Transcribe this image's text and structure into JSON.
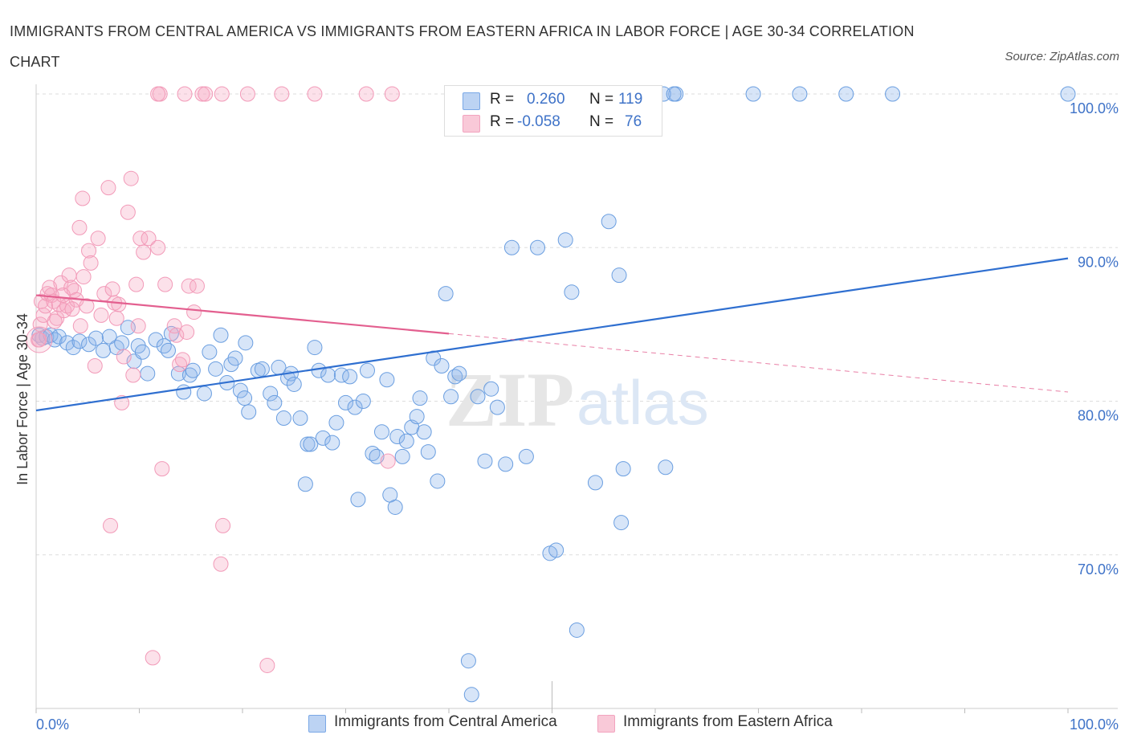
{
  "title": "IMMIGRANTS FROM CENTRAL AMERICA VS IMMIGRANTS FROM EASTERN AFRICA IN LABOR FORCE | AGE 30-34 CORRELATION CHART",
  "source": "Source: ZipAtlas.com",
  "watermark": {
    "zip": "ZIP",
    "atlas": "atlas"
  },
  "legend_stats": [
    {
      "r_label": "R =",
      "r_value": "0.260",
      "n_label": "N =",
      "n_value": "119",
      "color": "#7aa8e6"
    },
    {
      "r_label": "R =",
      "r_value": "-0.058",
      "n_label": "N =",
      "n_value": "76",
      "color": "#f2a3bf"
    }
  ],
  "chart_data": {
    "type": "scatter",
    "title": "IMMIGRANTS FROM CENTRAL AMERICA VS IMMIGRANTS FROM EASTERN AFRICA IN LABOR FORCE | AGE 30-34 CORRELATION CHART",
    "xlabel": "",
    "ylabel": "In Labor Force | Age 30-34",
    "xlim": [
      0,
      100
    ],
    "ylim": [
      60,
      100
    ],
    "x_tick_labels": [
      "0.0%",
      "100.0%"
    ],
    "y_ticks": [
      70,
      80,
      90,
      100
    ],
    "y_tick_labels": [
      "70.0%",
      "80.0%",
      "90.0%",
      "100.0%"
    ],
    "grid": true,
    "legend_position": "bottom",
    "series": [
      {
        "name": "Immigrants from Central America",
        "color": "#6a9ee0",
        "line_color": "#2f6fd0",
        "trend": {
          "x": [
            0,
            100
          ],
          "y": [
            79.4,
            89.3
          ]
        },
        "points": [
          [
            0.3,
            84.3
          ],
          [
            0.6,
            84.1
          ],
          [
            1.0,
            84.2
          ],
          [
            1.4,
            84.3
          ],
          [
            1.8,
            84.0
          ],
          [
            2.2,
            84.2
          ],
          [
            3.0,
            83.8
          ],
          [
            3.6,
            83.5
          ],
          [
            4.2,
            83.9
          ],
          [
            5.1,
            83.7
          ],
          [
            5.8,
            84.1
          ],
          [
            6.5,
            83.3
          ],
          [
            7.1,
            84.2
          ],
          [
            7.8,
            83.5
          ],
          [
            8.3,
            83.8
          ],
          [
            8.9,
            84.8
          ],
          [
            9.5,
            82.6
          ],
          [
            9.9,
            83.6
          ],
          [
            10.3,
            83.2
          ],
          [
            10.8,
            81.8
          ],
          [
            11.6,
            84.0
          ],
          [
            12.4,
            83.6
          ],
          [
            12.8,
            83.3
          ],
          [
            13.1,
            84.4
          ],
          [
            13.8,
            81.8
          ],
          [
            14.3,
            80.6
          ],
          [
            14.9,
            81.7
          ],
          [
            15.2,
            82.0
          ],
          [
            16.3,
            80.5
          ],
          [
            16.8,
            83.2
          ],
          [
            17.4,
            82.1
          ],
          [
            17.9,
            84.3
          ],
          [
            18.5,
            81.2
          ],
          [
            18.9,
            82.4
          ],
          [
            19.3,
            82.8
          ],
          [
            19.8,
            80.7
          ],
          [
            20.2,
            80.2
          ],
          [
            20.6,
            79.3
          ],
          [
            20.3,
            83.8
          ],
          [
            21.5,
            82.0
          ],
          [
            21.9,
            82.1
          ],
          [
            22.7,
            80.5
          ],
          [
            23.1,
            79.9
          ],
          [
            23.5,
            82.2
          ],
          [
            24.0,
            78.9
          ],
          [
            24.4,
            81.5
          ],
          [
            24.7,
            81.8
          ],
          [
            25.0,
            81.1
          ],
          [
            25.6,
            78.9
          ],
          [
            26.1,
            74.6
          ],
          [
            26.3,
            77.2
          ],
          [
            26.6,
            77.2
          ],
          [
            27.0,
            83.5
          ],
          [
            27.4,
            82.0
          ],
          [
            27.8,
            77.6
          ],
          [
            28.3,
            81.7
          ],
          [
            28.7,
            77.3
          ],
          [
            29.1,
            78.6
          ],
          [
            29.6,
            81.7
          ],
          [
            30.0,
            79.9
          ],
          [
            30.4,
            81.6
          ],
          [
            30.9,
            79.6
          ],
          [
            31.2,
            73.6
          ],
          [
            31.7,
            80.0
          ],
          [
            32.1,
            82.0
          ],
          [
            32.6,
            76.6
          ],
          [
            33.0,
            76.4
          ],
          [
            33.5,
            78.0
          ],
          [
            34.0,
            81.4
          ],
          [
            34.3,
            73.9
          ],
          [
            34.8,
            73.1
          ],
          [
            35.0,
            77.7
          ],
          [
            35.5,
            76.4
          ],
          [
            35.9,
            77.4
          ],
          [
            36.4,
            78.3
          ],
          [
            36.9,
            79.0
          ],
          [
            37.2,
            80.2
          ],
          [
            37.6,
            78.0
          ],
          [
            38.0,
            76.7
          ],
          [
            38.5,
            82.8
          ],
          [
            38.9,
            74.8
          ],
          [
            39.3,
            82.3
          ],
          [
            39.7,
            87.0
          ],
          [
            40.2,
            80.3
          ],
          [
            40.6,
            81.6
          ],
          [
            41.0,
            81.8
          ],
          [
            41.9,
            63.1
          ],
          [
            42.2,
            60.9
          ],
          [
            42.8,
            80.3
          ],
          [
            43.5,
            76.1
          ],
          [
            44.1,
            80.8
          ],
          [
            44.7,
            79.6
          ],
          [
            45.5,
            75.9
          ],
          [
            46.1,
            90.0
          ],
          [
            47.5,
            76.4
          ],
          [
            48.6,
            90.0
          ],
          [
            49.8,
            70.1
          ],
          [
            50.4,
            70.3
          ],
          [
            51.3,
            90.5
          ],
          [
            51.9,
            87.1
          ],
          [
            52.4,
            65.1
          ],
          [
            54.2,
            74.7
          ],
          [
            55.5,
            91.7
          ],
          [
            56.7,
            72.1
          ],
          [
            56.9,
            75.6
          ],
          [
            56.5,
            88.2
          ],
          [
            61.0,
            75.7
          ],
          [
            58.0,
            100
          ],
          [
            62.0,
            100
          ],
          [
            59.0,
            100
          ],
          [
            69.5,
            100
          ],
          [
            74.0,
            100
          ],
          [
            78.5,
            100
          ],
          [
            83.0,
            100
          ],
          [
            58.5,
            100
          ],
          [
            60.8,
            100
          ],
          [
            61.8,
            100
          ],
          [
            100,
            100
          ]
        ]
      },
      {
        "name": "Immigrants from Eastern Africa",
        "color": "#f29ab8",
        "line_color": "#e35f8f",
        "trend": {
          "x": [
            0,
            40
          ],
          "y": [
            86.9,
            84.4
          ]
        },
        "trend_dashed": {
          "x": [
            40,
            100
          ],
          "y": [
            84.4,
            80.6
          ]
        },
        "points": [
          [
            0.2,
            84.0
          ],
          [
            0.4,
            85.0
          ],
          [
            0.5,
            86.5
          ],
          [
            0.7,
            85.6
          ],
          [
            0.9,
            86.2
          ],
          [
            1.1,
            87.0
          ],
          [
            1.3,
            87.4
          ],
          [
            1.5,
            86.9
          ],
          [
            1.7,
            86.5
          ],
          [
            2.0,
            85.4
          ],
          [
            2.2,
            86.3
          ],
          [
            2.4,
            87.7
          ],
          [
            2.7,
            85.9
          ],
          [
            3.0,
            86.2
          ],
          [
            3.2,
            88.2
          ],
          [
            3.4,
            87.4
          ],
          [
            3.7,
            87.2
          ],
          [
            3.9,
            86.6
          ],
          [
            4.3,
            84.9
          ],
          [
            4.6,
            88.1
          ],
          [
            4.9,
            86.2
          ],
          [
            5.1,
            89.8
          ],
          [
            5.3,
            89.0
          ],
          [
            5.7,
            82.3
          ],
          [
            6.0,
            90.6
          ],
          [
            6.3,
            85.6
          ],
          [
            6.6,
            87.0
          ],
          [
            7.0,
            93.9
          ],
          [
            7.2,
            71.9
          ],
          [
            7.4,
            87.3
          ],
          [
            7.6,
            86.4
          ],
          [
            7.8,
            85.4
          ],
          [
            8.0,
            86.3
          ],
          [
            8.3,
            79.9
          ],
          [
            8.5,
            82.9
          ],
          [
            8.9,
            92.3
          ],
          [
            9.2,
            94.5
          ],
          [
            9.4,
            81.7
          ],
          [
            9.7,
            87.6
          ],
          [
            9.9,
            84.9
          ],
          [
            10.1,
            90.6
          ],
          [
            10.4,
            89.7
          ],
          [
            10.9,
            90.6
          ],
          [
            11.3,
            63.3
          ],
          [
            11.8,
            90.0
          ],
          [
            12.2,
            75.6
          ],
          [
            12.5,
            87.6
          ],
          [
            13.4,
            84.9
          ],
          [
            13.6,
            84.3
          ],
          [
            13.9,
            82.4
          ],
          [
            14.2,
            82.7
          ],
          [
            14.6,
            84.5
          ],
          [
            14.8,
            87.5
          ],
          [
            15.3,
            85.8
          ],
          [
            15.6,
            87.5
          ],
          [
            17.9,
            69.4
          ],
          [
            18.1,
            71.9
          ],
          [
            22.4,
            62.8
          ],
          [
            34.1,
            76.1
          ],
          [
            4.5,
            93.2
          ],
          [
            4.2,
            91.3
          ],
          [
            0.3,
            84.0
          ],
          [
            2.6,
            86.9
          ],
          [
            1.8,
            85.2
          ],
          [
            3.5,
            86.0
          ],
          [
            12.0,
            100
          ],
          [
            14.4,
            100
          ],
          [
            16.1,
            100
          ],
          [
            18.0,
            100
          ],
          [
            20.5,
            100
          ],
          [
            23.8,
            100
          ],
          [
            27.0,
            100
          ],
          [
            32.0,
            100
          ],
          [
            34.5,
            100
          ],
          [
            16.4,
            100
          ],
          [
            11.8,
            100
          ]
        ]
      }
    ]
  }
}
